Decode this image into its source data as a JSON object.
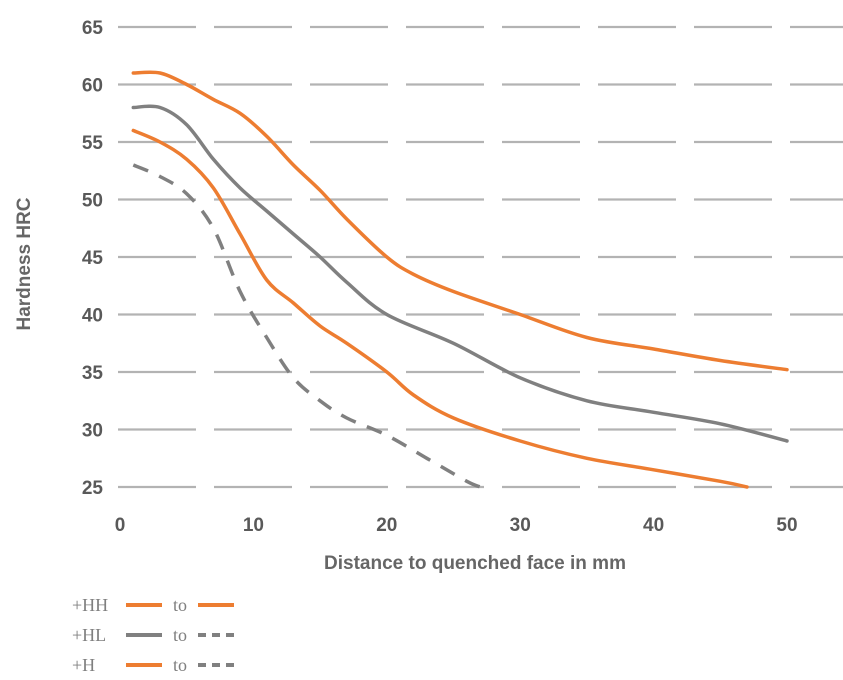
{
  "chart_data": {
    "type": "line",
    "title": "",
    "xlabel": "Distance to quenched face in mm",
    "ylabel": "Hardness HRC",
    "xlim": [
      0,
      50
    ],
    "ylim": [
      25,
      65
    ],
    "x_ticks": [
      "0",
      "10",
      "20",
      "30",
      "40",
      "50"
    ],
    "y_ticks": [
      "25",
      "30",
      "35",
      "40",
      "45",
      "50",
      "55",
      "60",
      "65"
    ],
    "grid": "horizontal dashed",
    "series": [
      {
        "color": "#ed7d31",
        "dash": "solid",
        "x": [
          1,
          3,
          5,
          7,
          9,
          11,
          13,
          15,
          17,
          20,
          22,
          25,
          30,
          35,
          40,
          45,
          50
        ],
        "y": [
          61,
          61,
          60,
          58.7,
          57.5,
          55.5,
          53,
          50.8,
          48.3,
          45,
          43.5,
          42,
          40,
          38,
          37,
          36,
          35.2
        ]
      },
      {
        "color": "#808080",
        "dash": "solid",
        "x": [
          1,
          3,
          5,
          7,
          9,
          11,
          13,
          15,
          17,
          20,
          25,
          30,
          35,
          40,
          45,
          50
        ],
        "y": [
          58,
          58,
          56.5,
          53.5,
          51,
          49,
          47,
          45,
          42.8,
          40,
          37.5,
          34.5,
          32.5,
          31.5,
          30.5,
          29
        ]
      },
      {
        "color": "#ed7d31",
        "dash": "solid",
        "x": [
          1,
          3,
          5,
          7,
          9,
          11,
          13,
          15,
          17,
          20,
          22,
          25,
          30,
          35,
          40,
          45,
          47
        ],
        "y": [
          56,
          55,
          53.5,
          51,
          47,
          43,
          41,
          39,
          37.5,
          35,
          33,
          31,
          29,
          27.5,
          26.5,
          25.5,
          25
        ]
      },
      {
        "color": "#808080",
        "dash": "dashed",
        "x": [
          1,
          3,
          5,
          7,
          9,
          11,
          13,
          15,
          17,
          20,
          23,
          26,
          27
        ],
        "y": [
          53,
          52,
          50.5,
          47.5,
          42,
          38,
          34.5,
          32.5,
          31,
          29.5,
          27.5,
          25.5,
          25
        ]
      }
    ],
    "legend": {
      "placement": "bottom-left",
      "rows": [
        {
          "name": "+HH",
          "to": "to",
          "from_color": "#ed7d31",
          "from_dash": "solid",
          "to_color": "#ed7d31",
          "to_dash": "solid"
        },
        {
          "name": "+HL",
          "to": "to",
          "from_color": "#808080",
          "from_dash": "solid",
          "to_color": "#808080",
          "to_dash": "dashed"
        },
        {
          "name": "+H",
          "to": "to",
          "from_color": "#ed7d31",
          "from_dash": "solid",
          "to_color": "#808080",
          "to_dash": "dashed"
        }
      ]
    }
  }
}
